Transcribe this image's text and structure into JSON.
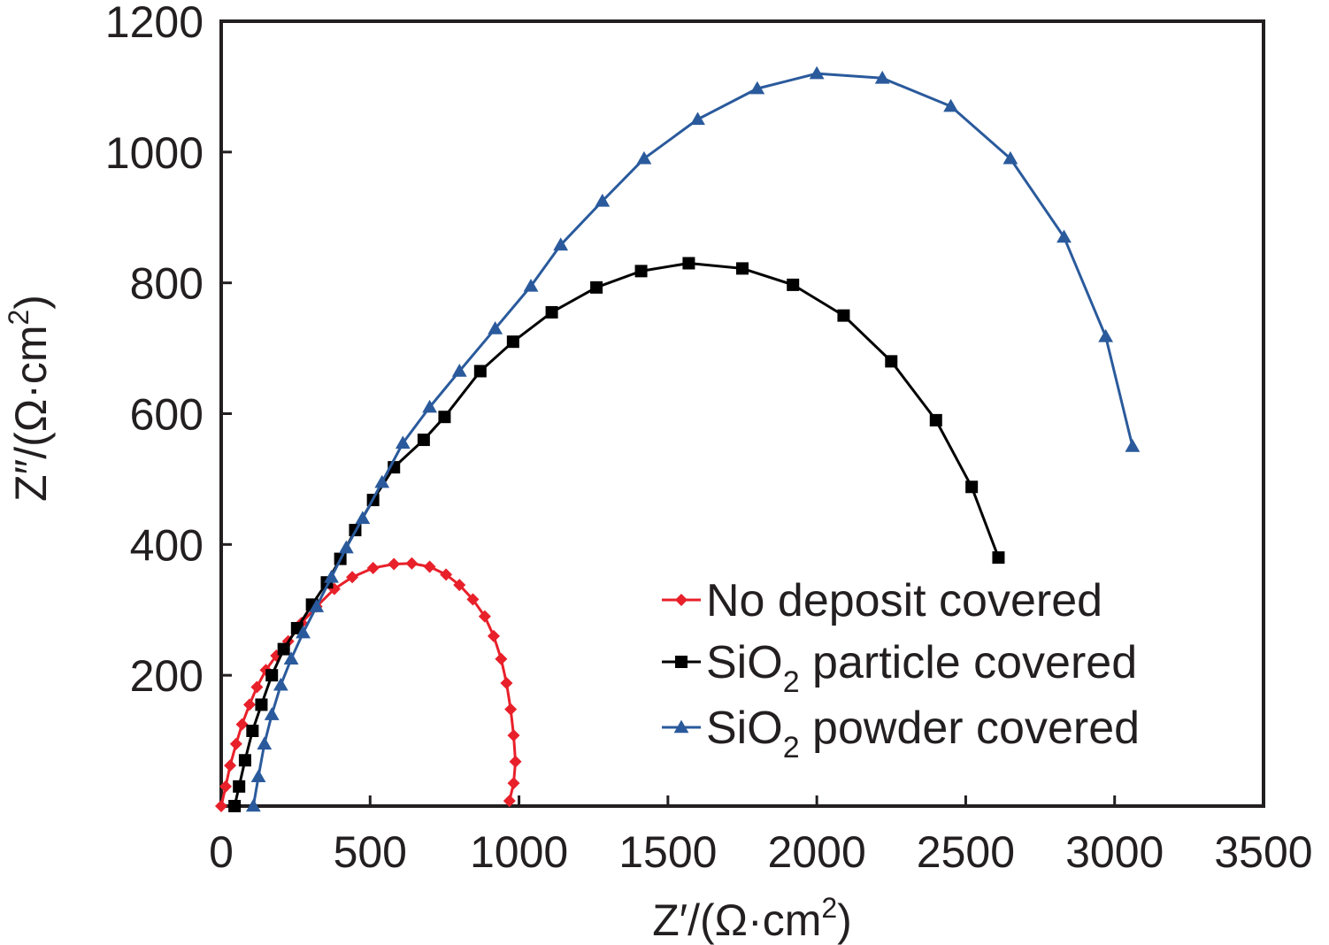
{
  "chart_data": {
    "type": "scatter",
    "title": "",
    "xlabel": "Z′/(Ω·cm",
    "xlabel_sup": "2",
    "xlabel_end": ")",
    "ylabel": "Z″/(Ω·cm",
    "ylabel_sup": "2",
    "ylabel_end": ")",
    "xlim": [
      0,
      3500
    ],
    "ylim": [
      0,
      1200
    ],
    "xticks": [
      "0",
      "500",
      "1000",
      "1500",
      "2000",
      "2500",
      "3000",
      "3500"
    ],
    "yticks": [
      "200",
      "400",
      "600",
      "800",
      "1000",
      "1200"
    ],
    "xtick_values": [
      0,
      500,
      1000,
      1500,
      2000,
      2500,
      3000,
      3500
    ],
    "ytick_values": [
      200,
      400,
      600,
      800,
      1000,
      1200
    ],
    "grid": false,
    "legend_position": "bottom-right",
    "series": [
      {
        "name_prefix": "No deposit covered",
        "name_sub": "",
        "name_suffix": "",
        "color": "#e8202a",
        "marker": "diamond",
        "points": [
          [
            0,
            0
          ],
          [
            15,
            30
          ],
          [
            30,
            62
          ],
          [
            50,
            95
          ],
          [
            70,
            125
          ],
          [
            95,
            155
          ],
          [
            120,
            182
          ],
          [
            150,
            208
          ],
          [
            185,
            230
          ],
          [
            225,
            252
          ],
          [
            270,
            280
          ],
          [
            320,
            305
          ],
          [
            380,
            332
          ],
          [
            440,
            350
          ],
          [
            510,
            364
          ],
          [
            580,
            370
          ],
          [
            640,
            371
          ],
          [
            700,
            366
          ],
          [
            755,
            354
          ],
          [
            800,
            338
          ],
          [
            845,
            316
          ],
          [
            885,
            290
          ],
          [
            915,
            260
          ],
          [
            940,
            225
          ],
          [
            958,
            188
          ],
          [
            972,
            148
          ],
          [
            982,
            108
          ],
          [
            988,
            68
          ],
          [
            982,
            35
          ],
          [
            968,
            8
          ]
        ]
      },
      {
        "name_prefix": "SiO",
        "name_sub": "2",
        "name_suffix": " particle covered",
        "color": "#000000",
        "marker": "square",
        "points": [
          [
            45,
            0
          ],
          [
            60,
            30
          ],
          [
            80,
            70
          ],
          [
            105,
            115
          ],
          [
            135,
            155
          ],
          [
            170,
            200
          ],
          [
            210,
            240
          ],
          [
            255,
            272
          ],
          [
            305,
            308
          ],
          [
            355,
            342
          ],
          [
            400,
            378
          ],
          [
            450,
            422
          ],
          [
            510,
            468
          ],
          [
            580,
            518
          ],
          [
            680,
            560
          ],
          [
            750,
            595
          ],
          [
            870,
            665
          ],
          [
            980,
            710
          ],
          [
            1110,
            755
          ],
          [
            1260,
            793
          ],
          [
            1410,
            818
          ],
          [
            1570,
            830
          ],
          [
            1750,
            822
          ],
          [
            1920,
            797
          ],
          [
            2090,
            750
          ],
          [
            2250,
            680
          ],
          [
            2400,
            590
          ],
          [
            2520,
            488
          ],
          [
            2610,
            380
          ]
        ]
      },
      {
        "name_prefix": "SiO",
        "name_sub": "2",
        "name_suffix": " powder covered",
        "color": "#2a5a9c",
        "marker": "triangle",
        "points": [
          [
            108,
            0
          ],
          [
            125,
            45
          ],
          [
            145,
            95
          ],
          [
            170,
            140
          ],
          [
            200,
            185
          ],
          [
            235,
            225
          ],
          [
            275,
            265
          ],
          [
            320,
            305
          ],
          [
            370,
            350
          ],
          [
            420,
            395
          ],
          [
            475,
            440
          ],
          [
            540,
            495
          ],
          [
            610,
            555
          ],
          [
            700,
            610
          ],
          [
            800,
            665
          ],
          [
            920,
            730
          ],
          [
            1040,
            795
          ],
          [
            1140,
            858
          ],
          [
            1280,
            925
          ],
          [
            1420,
            990
          ],
          [
            1600,
            1050
          ],
          [
            1800,
            1097
          ],
          [
            2000,
            1120
          ],
          [
            2220,
            1113
          ],
          [
            2450,
            1070
          ],
          [
            2650,
            990
          ],
          [
            2830,
            870
          ],
          [
            2970,
            718
          ],
          [
            3060,
            550
          ]
        ]
      }
    ]
  }
}
